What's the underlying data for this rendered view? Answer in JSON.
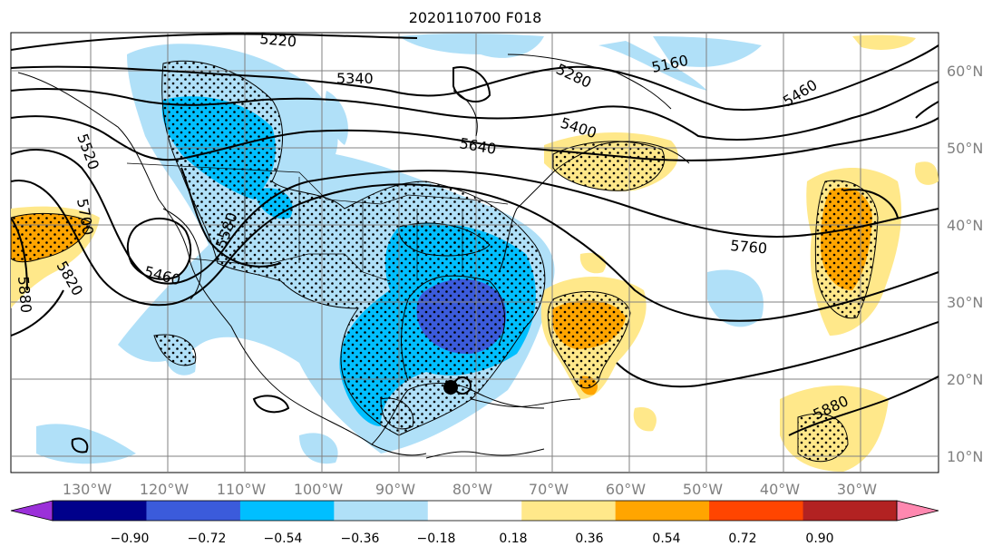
{
  "title": "2020110700 F018",
  "lon_labels": [
    "130°W",
    "120°W",
    "110°W",
    "100°W",
    "90°W",
    "80°W",
    "70°W",
    "60°W",
    "50°W",
    "40°W",
    "30°W"
  ],
  "lat_labels": [
    "60°N",
    "50°N",
    "40°N",
    "30°N",
    "20°N",
    "10°N"
  ],
  "contour_labels": [
    "5220",
    "5340",
    "5280",
    "5160",
    "5460",
    "5400",
    "5640",
    "5520",
    "5700",
    "5580",
    "5760",
    "5460",
    "5820",
    "5880",
    "5880"
  ],
  "colorbar": {
    "ticks": [
      "−0.90",
      "−0.72",
      "−0.54",
      "−0.36",
      "−0.18",
      "0.18",
      "0.36",
      "0.54",
      "0.72",
      "0.90"
    ],
    "colors": [
      "#9b30d9",
      "#00008b",
      "#3b5bdb",
      "#00bfff",
      "#b0e0f8",
      "#ffffff",
      "#ffe88a",
      "#ffa500",
      "#ff4500",
      "#b22222",
      "#ff88b0"
    ]
  },
  "shading_colors": {
    "light_blue": "#b0e0f8",
    "mid_blue": "#00bfff",
    "dark_blue": "#3b5bdb",
    "yellow": "#ffe88a",
    "orange": "#ffa500"
  },
  "marker": "storm-center"
}
